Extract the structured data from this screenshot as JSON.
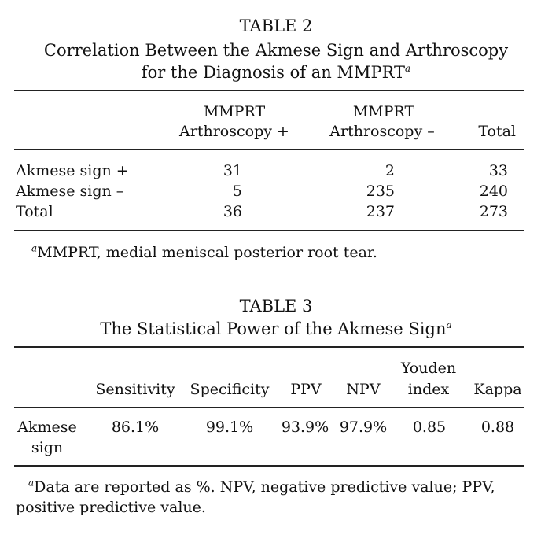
{
  "table2": {
    "label": "TABLE 2",
    "caption_line1": "Correlation Between the Akmese Sign and Arthroscopy",
    "caption_line2": "for the Diagnosis of an MMPRT",
    "caption_sup": "a",
    "headers": {
      "col1_line1": "MMPRT",
      "col1_line2": "Arthroscopy +",
      "col2_line1": "MMPRT",
      "col2_line2": "Arthroscopy –",
      "col3": "Total"
    },
    "rows": [
      {
        "label": "Akmese sign +",
        "v1": "31",
        "v2": "2",
        "v3": "33"
      },
      {
        "label": "Akmese sign –",
        "v1": "5",
        "v2": "235",
        "v3": "240"
      },
      {
        "label": "Total",
        "v1": "36",
        "v2": "237",
        "v3": "273"
      }
    ],
    "footnote_sup": "a",
    "footnote": "MMPRT, medial meniscal posterior root tear."
  },
  "table3": {
    "label": "TABLE 3",
    "caption": "The Statistical Power of the Akmese Sign",
    "caption_sup": "a",
    "headers": {
      "sensitivity": "Sensitivity",
      "specificity": "Specificity",
      "ppv": "PPV",
      "npv": "NPV",
      "youden_line1": "Youden",
      "youden_line2": "index",
      "kappa": "Kappa"
    },
    "row": {
      "label_line1": "Akmese",
      "label_line2": "sign",
      "sensitivity": "86.1%",
      "specificity": "99.1%",
      "ppv": "93.9%",
      "npv": "97.9%",
      "youden": "0.85",
      "kappa": "0.88"
    },
    "footnote_sup": "a",
    "footnote_line1": "Data are reported as %. NPV, negative predictive value; PPV,",
    "footnote_line2": "positive predictive value."
  }
}
